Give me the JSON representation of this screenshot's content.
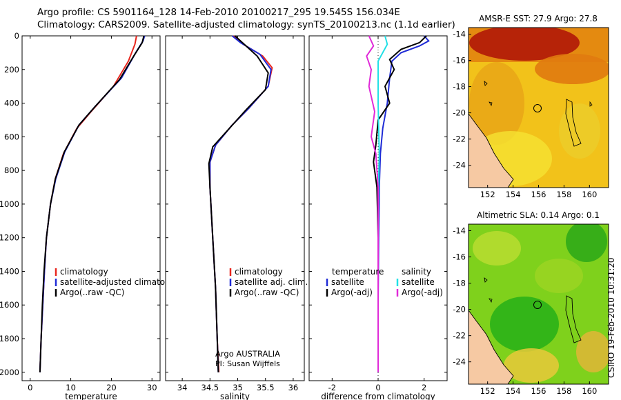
{
  "header": {
    "line1": "Argo profile: CS 5901164_128 14-Feb-2010 20100217_295 19.545S 156.034E",
    "line2": "Climatology: CARS2009. Satellite-adjusted climatology: synTS_20100213.nc (1.1d earlier)"
  },
  "stamp": "CSIRO 19-Feb-2010 10:31:20",
  "colors": {
    "clim": "#e8261e",
    "sat": "#1f2bd6",
    "argo": "#000000",
    "sat_s": "#22e0e6",
    "argo_s": "#e02ad8"
  },
  "chart_data": [
    {
      "type": "line",
      "name": "temperature",
      "xlabel": "temperature",
      "xlim": [
        -2,
        32
      ],
      "ylim": [
        0,
        2050
      ],
      "xticks": [
        0,
        10,
        20,
        30
      ],
      "yticks": [
        0,
        200,
        400,
        600,
        800,
        1000,
        1200,
        1400,
        1600,
        1800,
        2000
      ],
      "legend": [
        "climatology",
        "satellite-adjusted climatology",
        "Argo(..raw -QC)"
      ],
      "series": [
        {
          "name": "climatology",
          "color": "clim",
          "points": [
            [
              26.2,
              0
            ],
            [
              25.8,
              50
            ],
            [
              24.2,
              150
            ],
            [
              20.5,
              300
            ],
            [
              15,
              450
            ],
            [
              11.5,
              550
            ],
            [
              8.2,
              700
            ],
            [
              6.2,
              850
            ],
            [
              5,
              1000
            ],
            [
              4,
              1200
            ],
            [
              3.5,
              1400
            ],
            [
              3.1,
              1600
            ],
            [
              2.7,
              1800
            ],
            [
              2.4,
              2000
            ]
          ]
        },
        {
          "name": "satellite-adjusted climatology",
          "color": "sat",
          "points": [
            [
              28.2,
              0
            ],
            [
              27.8,
              30
            ],
            [
              26,
              100
            ],
            [
              22.5,
              250
            ],
            [
              16,
              420
            ],
            [
              12,
              530
            ],
            [
              8.5,
              690
            ],
            [
              6.3,
              850
            ],
            [
              5,
              1000
            ],
            [
              4,
              1200
            ],
            [
              3.5,
              1400
            ],
            [
              3.1,
              1600
            ],
            [
              2.7,
              1800
            ],
            [
              2.4,
              2000
            ]
          ]
        },
        {
          "name": "Argo(..raw -QC)",
          "color": "argo",
          "points": [
            [
              28,
              0
            ],
            [
              27.6,
              40
            ],
            [
              25.5,
              120
            ],
            [
              22,
              260
            ],
            [
              16,
              420
            ],
            [
              12,
              530
            ],
            [
              8.4,
              690
            ],
            [
              6.2,
              850
            ],
            [
              5,
              1000
            ],
            [
              4,
              1200
            ],
            [
              3.4,
              1400
            ],
            [
              3,
              1600
            ],
            [
              2.7,
              1800
            ],
            [
              2.4,
              2000
            ]
          ]
        }
      ]
    },
    {
      "type": "line",
      "name": "salinity",
      "xlabel": "salinity",
      "xlim": [
        33.7,
        36.2
      ],
      "ylim": [
        0,
        2050
      ],
      "xticks": [
        34,
        34.5,
        35,
        35.5,
        36
      ],
      "yticks": [
        0,
        200,
        400,
        600,
        800,
        1000,
        1200,
        1400,
        1600,
        1800,
        2000
      ],
      "legend": [
        "climatology",
        "satellite adj. clim.",
        "Argo(..raw -QC)"
      ],
      "annotation": [
        "Argo AUSTRALIA",
        "PI: Susan Wijffels"
      ],
      "series": [
        {
          "name": "climatology",
          "color": "clim",
          "points": [
            [
              34.92,
              0
            ],
            [
              35.1,
              50
            ],
            [
              35.45,
              120
            ],
            [
              35.62,
              190
            ],
            [
              35.55,
              300
            ],
            [
              35.2,
              430
            ],
            [
              34.9,
              530
            ],
            [
              34.6,
              650
            ],
            [
              34.5,
              750
            ],
            [
              34.5,
              900
            ],
            [
              34.55,
              1200
            ],
            [
              34.6,
              1500
            ],
            [
              34.63,
              1800
            ],
            [
              34.66,
              2000
            ]
          ]
        },
        {
          "name": "satellite adj. clim.",
          "color": "sat",
          "points": [
            [
              34.9,
              0
            ],
            [
              35.05,
              40
            ],
            [
              35.4,
              110
            ],
            [
              35.6,
              200
            ],
            [
              35.55,
              300
            ],
            [
              35.2,
              430
            ],
            [
              34.9,
              530
            ],
            [
              34.6,
              650
            ],
            [
              34.5,
              750
            ],
            [
              34.5,
              900
            ],
            [
              34.55,
              1200
            ],
            [
              34.6,
              1500
            ],
            [
              34.63,
              1800
            ],
            [
              34.65,
              2000
            ]
          ]
        },
        {
          "name": "Argo(..raw -QC)",
          "color": "argo",
          "points": [
            [
              34.95,
              0
            ],
            [
              35.15,
              60
            ],
            [
              35.35,
              120
            ],
            [
              35.55,
              220
            ],
            [
              35.5,
              320
            ],
            [
              35.15,
              440
            ],
            [
              34.85,
              550
            ],
            [
              34.55,
              660
            ],
            [
              34.48,
              760
            ],
            [
              34.5,
              900
            ],
            [
              34.55,
              1200
            ],
            [
              34.6,
              1500
            ],
            [
              34.63,
              1800
            ],
            [
              34.65,
              2000
            ]
          ]
        }
      ]
    },
    {
      "type": "line",
      "name": "difference",
      "xlabel": "difference from climatology",
      "xlim": [
        -3,
        3
      ],
      "ylim": [
        0,
        2050
      ],
      "xticks": [
        -2,
        0,
        2
      ],
      "yticks": [
        0,
        200,
        400,
        600,
        800,
        1000,
        1200,
        1400,
        1600,
        1800,
        2000
      ],
      "legend_titles": [
        "temperature",
        "salinity"
      ],
      "legend": [
        "satellite",
        "Argo(-adj)",
        "satellite",
        "Argo(-adj)"
      ],
      "series": [
        {
          "name": "temperature satellite",
          "color": "sat",
          "points": [
            [
              2,
              0
            ],
            [
              2.2,
              30
            ],
            [
              1.8,
              60
            ],
            [
              1,
              100
            ],
            [
              0.6,
              150
            ],
            [
              0.5,
              250
            ],
            [
              0.4,
              400
            ],
            [
              0.2,
              550
            ],
            [
              0.1,
              700
            ],
            [
              0.05,
              900
            ],
            [
              0.02,
              1200
            ],
            [
              0,
              1600
            ],
            [
              0,
              2000
            ]
          ]
        },
        {
          "name": "temperature Argo(-adj)",
          "color": "argo",
          "points": [
            [
              2.1,
              0
            ],
            [
              1.8,
              40
            ],
            [
              1,
              80
            ],
            [
              0.5,
              140
            ],
            [
              0.7,
              200
            ],
            [
              0.3,
              300
            ],
            [
              0.5,
              400
            ],
            [
              0,
              500
            ],
            [
              -0.1,
              650
            ],
            [
              -0.2,
              750
            ],
            [
              -0.05,
              900
            ],
            [
              0,
              1200
            ],
            [
              0,
              1600
            ],
            [
              0,
              2000
            ]
          ]
        },
        {
          "name": "salinity satellite",
          "color": "sat_s",
          "points": [
            [
              0.3,
              0
            ],
            [
              0.4,
              50
            ],
            [
              0,
              150
            ],
            [
              0,
              400
            ],
            [
              0.05,
              700
            ],
            [
              0,
              1000
            ],
            [
              0,
              1500
            ],
            [
              0,
              2000
            ]
          ]
        },
        {
          "name": "salinity Argo(-adj)",
          "color": "argo_s",
          "points": [
            [
              -0.4,
              0
            ],
            [
              -0.2,
              60
            ],
            [
              -0.5,
              120
            ],
            [
              -0.3,
              200
            ],
            [
              -0.4,
              300
            ],
            [
              -0.15,
              450
            ],
            [
              -0.3,
              600
            ],
            [
              -0.1,
              700
            ],
            [
              0,
              900
            ],
            [
              0,
              1500
            ],
            [
              0,
              2000
            ]
          ]
        }
      ]
    },
    {
      "type": "heatmap",
      "name": "sst-map",
      "title": "AMSR-E SST: 27.9 Argo: 27.8",
      "xlim": [
        150.5,
        161.5
      ],
      "ylim": [
        -25.7,
        -13.5
      ],
      "xticks": [
        152,
        154,
        156,
        158,
        160
      ],
      "yticks": [
        -14,
        -16,
        -18,
        -20,
        -22,
        -24
      ],
      "argo_position": [
        156.03,
        -19.55
      ]
    },
    {
      "type": "heatmap",
      "name": "sla-map",
      "title": "Altimetric SLA: 0.14 Argo: 0.1",
      "xlim": [
        150.5,
        161.5
      ],
      "ylim": [
        -25.7,
        -13.5
      ],
      "xticks": [
        152,
        154,
        156,
        158,
        160
      ],
      "yticks": [
        -14,
        -16,
        -18,
        -20,
        -22,
        -24
      ],
      "argo_position": [
        156.03,
        -19.55
      ]
    }
  ]
}
